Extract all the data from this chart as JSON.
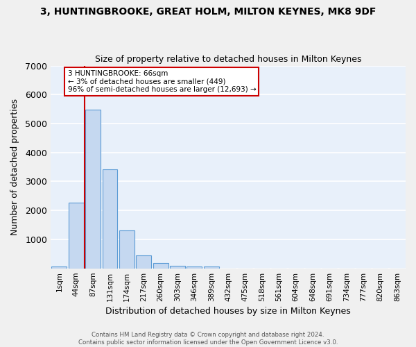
{
  "title1": "3, HUNTINGBROOKE, GREAT HOLM, MILTON KEYNES, MK8 9DF",
  "title2": "Size of property relative to detached houses in Milton Keynes",
  "xlabel": "Distribution of detached houses by size in Milton Keynes",
  "ylabel": "Number of detached properties",
  "bar_labels": [
    "1sqm",
    "44sqm",
    "87sqm",
    "131sqm",
    "174sqm",
    "217sqm",
    "260sqm",
    "303sqm",
    "346sqm",
    "389sqm",
    "432sqm",
    "475sqm",
    "518sqm",
    "561sqm",
    "604sqm",
    "648sqm",
    "691sqm",
    "734sqm",
    "777sqm",
    "820sqm",
    "863sqm"
  ],
  "bar_values": [
    75,
    2270,
    5480,
    3430,
    1310,
    450,
    185,
    90,
    65,
    55,
    0,
    0,
    0,
    0,
    0,
    0,
    0,
    0,
    0,
    0,
    0
  ],
  "bar_color": "#c5d8f0",
  "bar_edge_color": "#5b9bd5",
  "background_color": "#e8f0fa",
  "grid_color": "#ffffff",
  "vline_color": "#cc0000",
  "annotation_text": "3 HUNTINGBROOKE: 66sqm\n← 3% of detached houses are smaller (449)\n96% of semi-detached houses are larger (12,693) →",
  "annotation_box_color": "#ffffff",
  "annotation_box_edge": "#cc0000",
  "ylim": [
    0,
    7000
  ],
  "yticks": [
    0,
    1000,
    2000,
    3000,
    4000,
    5000,
    6000,
    7000
  ],
  "footnote": "Contains HM Land Registry data © Crown copyright and database right 2024.\nContains public sector information licensed under the Open Government Licence v3.0."
}
